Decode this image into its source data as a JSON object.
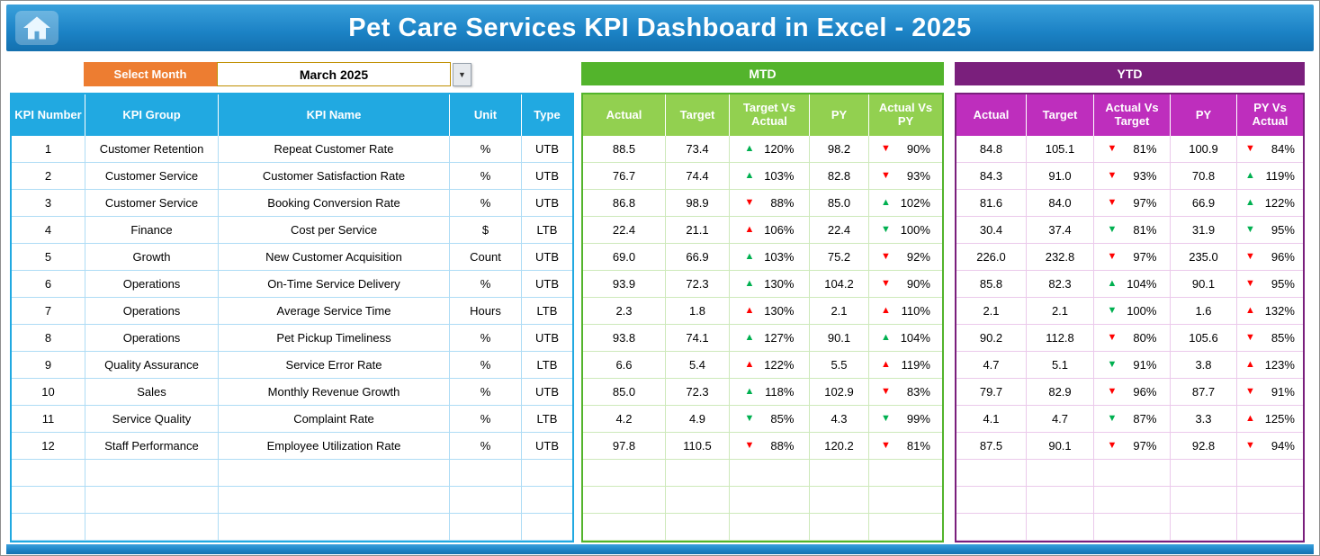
{
  "header": {
    "title": "Pet Care Services KPI Dashboard in Excel - 2025"
  },
  "controls": {
    "select_month_label": "Select Month",
    "selected_month": "March 2025"
  },
  "sections": {
    "mtd_label": "MTD",
    "ytd_label": "YTD"
  },
  "table": {
    "kpi_headers": [
      "KPI Number",
      "KPI Group",
      "KPI Name",
      "Unit",
      "Type"
    ],
    "mtd_headers": [
      "Actual",
      "Target",
      "Target Vs Actual",
      "PY",
      "Actual Vs PY"
    ],
    "ytd_headers": [
      "Actual",
      "Target",
      "Actual Vs Target",
      "PY",
      "PY Vs Actual"
    ],
    "empty_rows": 3,
    "rows": [
      {
        "number": "1",
        "group": "Customer Retention",
        "name": "Repeat Customer Rate",
        "unit": "%",
        "type": "UTB",
        "mtd": {
          "actual": "88.5",
          "target": "73.4",
          "target_vs_actual": {
            "arrow": "up",
            "color": "green",
            "value": "120%"
          },
          "py": "98.2",
          "actual_vs_py": {
            "arrow": "down",
            "color": "red",
            "value": "90%"
          }
        },
        "ytd": {
          "actual": "84.8",
          "target": "105.1",
          "actual_vs_target": {
            "arrow": "down",
            "color": "red",
            "value": "81%"
          },
          "py": "100.9",
          "py_vs_actual": {
            "arrow": "down",
            "color": "red",
            "value": "84%"
          }
        }
      },
      {
        "number": "2",
        "group": "Customer Service",
        "name": "Customer Satisfaction Rate",
        "unit": "%",
        "type": "UTB",
        "mtd": {
          "actual": "76.7",
          "target": "74.4",
          "target_vs_actual": {
            "arrow": "up",
            "color": "green",
            "value": "103%"
          },
          "py": "82.8",
          "actual_vs_py": {
            "arrow": "down",
            "color": "red",
            "value": "93%"
          }
        },
        "ytd": {
          "actual": "84.3",
          "target": "91.0",
          "actual_vs_target": {
            "arrow": "down",
            "color": "red",
            "value": "93%"
          },
          "py": "70.8",
          "py_vs_actual": {
            "arrow": "up",
            "color": "green",
            "value": "119%"
          }
        }
      },
      {
        "number": "3",
        "group": "Customer Service",
        "name": "Booking Conversion Rate",
        "unit": "%",
        "type": "UTB",
        "mtd": {
          "actual": "86.8",
          "target": "98.9",
          "target_vs_actual": {
            "arrow": "down",
            "color": "red",
            "value": "88%"
          },
          "py": "85.0",
          "actual_vs_py": {
            "arrow": "up",
            "color": "green",
            "value": "102%"
          }
        },
        "ytd": {
          "actual": "81.6",
          "target": "84.0",
          "actual_vs_target": {
            "arrow": "down",
            "color": "red",
            "value": "97%"
          },
          "py": "66.9",
          "py_vs_actual": {
            "arrow": "up",
            "color": "green",
            "value": "122%"
          }
        }
      },
      {
        "number": "4",
        "group": "Finance",
        "name": "Cost per Service",
        "unit": "$",
        "type": "LTB",
        "mtd": {
          "actual": "22.4",
          "target": "21.1",
          "target_vs_actual": {
            "arrow": "up",
            "color": "red",
            "value": "106%"
          },
          "py": "22.4",
          "actual_vs_py": {
            "arrow": "down",
            "color": "green",
            "value": "100%"
          }
        },
        "ytd": {
          "actual": "30.4",
          "target": "37.4",
          "actual_vs_target": {
            "arrow": "down",
            "color": "green",
            "value": "81%"
          },
          "py": "31.9",
          "py_vs_actual": {
            "arrow": "down",
            "color": "green",
            "value": "95%"
          }
        }
      },
      {
        "number": "5",
        "group": "Growth",
        "name": "New Customer Acquisition",
        "unit": "Count",
        "type": "UTB",
        "mtd": {
          "actual": "69.0",
          "target": "66.9",
          "target_vs_actual": {
            "arrow": "up",
            "color": "green",
            "value": "103%"
          },
          "py": "75.2",
          "actual_vs_py": {
            "arrow": "down",
            "color": "red",
            "value": "92%"
          }
        },
        "ytd": {
          "actual": "226.0",
          "target": "232.8",
          "actual_vs_target": {
            "arrow": "down",
            "color": "red",
            "value": "97%"
          },
          "py": "235.0",
          "py_vs_actual": {
            "arrow": "down",
            "color": "red",
            "value": "96%"
          }
        }
      },
      {
        "number": "6",
        "group": "Operations",
        "name": "On-Time Service Delivery",
        "unit": "%",
        "type": "UTB",
        "mtd": {
          "actual": "93.9",
          "target": "72.3",
          "target_vs_actual": {
            "arrow": "up",
            "color": "green",
            "value": "130%"
          },
          "py": "104.2",
          "actual_vs_py": {
            "arrow": "down",
            "color": "red",
            "value": "90%"
          }
        },
        "ytd": {
          "actual": "85.8",
          "target": "82.3",
          "actual_vs_target": {
            "arrow": "up",
            "color": "green",
            "value": "104%"
          },
          "py": "90.1",
          "py_vs_actual": {
            "arrow": "down",
            "color": "red",
            "value": "95%"
          }
        }
      },
      {
        "number": "7",
        "group": "Operations",
        "name": "Average Service Time",
        "unit": "Hours",
        "type": "LTB",
        "mtd": {
          "actual": "2.3",
          "target": "1.8",
          "target_vs_actual": {
            "arrow": "up",
            "color": "red",
            "value": "130%"
          },
          "py": "2.1",
          "actual_vs_py": {
            "arrow": "up",
            "color": "red",
            "value": "110%"
          }
        },
        "ytd": {
          "actual": "2.1",
          "target": "2.1",
          "actual_vs_target": {
            "arrow": "down",
            "color": "green",
            "value": "100%"
          },
          "py": "1.6",
          "py_vs_actual": {
            "arrow": "up",
            "color": "red",
            "value": "132%"
          }
        }
      },
      {
        "number": "8",
        "group": "Operations",
        "name": "Pet Pickup Timeliness",
        "unit": "%",
        "type": "UTB",
        "mtd": {
          "actual": "93.8",
          "target": "74.1",
          "target_vs_actual": {
            "arrow": "up",
            "color": "green",
            "value": "127%"
          },
          "py": "90.1",
          "actual_vs_py": {
            "arrow": "up",
            "color": "green",
            "value": "104%"
          }
        },
        "ytd": {
          "actual": "90.2",
          "target": "112.8",
          "actual_vs_target": {
            "arrow": "down",
            "color": "red",
            "value": "80%"
          },
          "py": "105.6",
          "py_vs_actual": {
            "arrow": "down",
            "color": "red",
            "value": "85%"
          }
        }
      },
      {
        "number": "9",
        "group": "Quality Assurance",
        "name": "Service Error Rate",
        "unit": "%",
        "type": "LTB",
        "mtd": {
          "actual": "6.6",
          "target": "5.4",
          "target_vs_actual": {
            "arrow": "up",
            "color": "red",
            "value": "122%"
          },
          "py": "5.5",
          "actual_vs_py": {
            "arrow": "up",
            "color": "red",
            "value": "119%"
          }
        },
        "ytd": {
          "actual": "4.7",
          "target": "5.1",
          "actual_vs_target": {
            "arrow": "down",
            "color": "green",
            "value": "91%"
          },
          "py": "3.8",
          "py_vs_actual": {
            "arrow": "up",
            "color": "red",
            "value": "123%"
          }
        }
      },
      {
        "number": "10",
        "group": "Sales",
        "name": "Monthly Revenue Growth",
        "unit": "%",
        "type": "UTB",
        "mtd": {
          "actual": "85.0",
          "target": "72.3",
          "target_vs_actual": {
            "arrow": "up",
            "color": "green",
            "value": "118%"
          },
          "py": "102.9",
          "actual_vs_py": {
            "arrow": "down",
            "color": "red",
            "value": "83%"
          }
        },
        "ytd": {
          "actual": "79.7",
          "target": "82.9",
          "actual_vs_target": {
            "arrow": "down",
            "color": "red",
            "value": "96%"
          },
          "py": "87.7",
          "py_vs_actual": {
            "arrow": "down",
            "color": "red",
            "value": "91%"
          }
        }
      },
      {
        "number": "11",
        "group": "Service Quality",
        "name": "Complaint Rate",
        "unit": "%",
        "type": "LTB",
        "mtd": {
          "actual": "4.2",
          "target": "4.9",
          "target_vs_actual": {
            "arrow": "down",
            "color": "green",
            "value": "85%"
          },
          "py": "4.3",
          "actual_vs_py": {
            "arrow": "down",
            "color": "green",
            "value": "99%"
          }
        },
        "ytd": {
          "actual": "4.1",
          "target": "4.7",
          "actual_vs_target": {
            "arrow": "down",
            "color": "green",
            "value": "87%"
          },
          "py": "3.3",
          "py_vs_actual": {
            "arrow": "up",
            "color": "red",
            "value": "125%"
          }
        }
      },
      {
        "number": "12",
        "group": "Staff Performance",
        "name": "Employee Utilization Rate",
        "unit": "%",
        "type": "UTB",
        "mtd": {
          "actual": "97.8",
          "target": "110.5",
          "target_vs_actual": {
            "arrow": "down",
            "color": "red",
            "value": "88%"
          },
          "py": "120.2",
          "actual_vs_py": {
            "arrow": "down",
            "color": "red",
            "value": "81%"
          }
        },
        "ytd": {
          "actual": "87.5",
          "target": "90.1",
          "actual_vs_target": {
            "arrow": "down",
            "color": "red",
            "value": "97%"
          },
          "py": "92.8",
          "py_vs_actual": {
            "arrow": "down",
            "color": "red",
            "value": "94%"
          }
        }
      }
    ]
  },
  "colors": {
    "banner_blue": "#1B82C5",
    "banner_blue_light": "#3AA0DB",
    "kpi_header_blue": "#21A9E1",
    "mtd_banner_green": "#53B42C",
    "mtd_header_green": "#92D050",
    "ytd_banner_purple": "#7A1F7C",
    "ytd_header_magenta": "#BE2EBD",
    "select_month_orange": "#ED7D31",
    "up_good_green": "#00B050",
    "down_bad_red": "#FF0000"
  }
}
